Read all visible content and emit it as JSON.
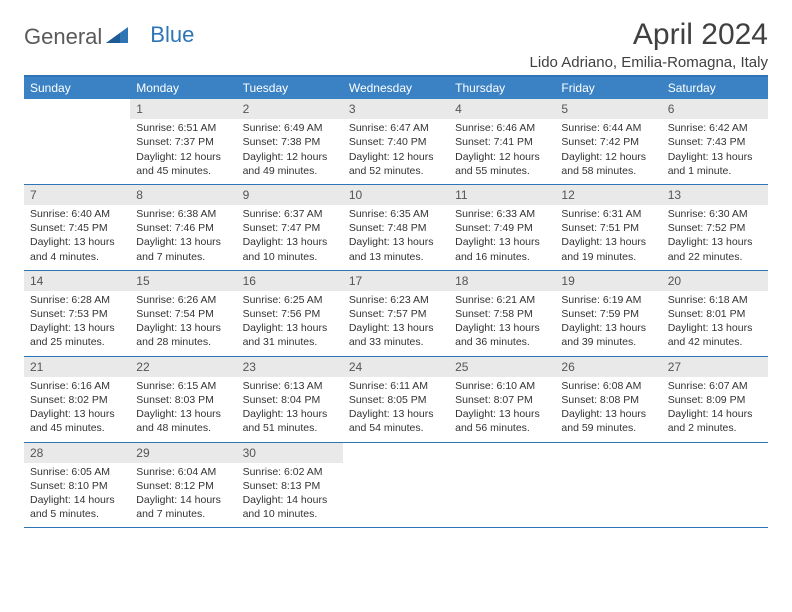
{
  "logo": {
    "text1": "General",
    "text2": "Blue"
  },
  "title": "April 2024",
  "location": "Lido Adriano, Emilia-Romagna, Italy",
  "colors": {
    "header_bar": "#3a82c4",
    "border": "#2e75b6",
    "daynum_bg": "#e9e9e9",
    "text": "#333333"
  },
  "day_headers": [
    "Sunday",
    "Monday",
    "Tuesday",
    "Wednesday",
    "Thursday",
    "Friday",
    "Saturday"
  ],
  "weeks": [
    [
      {
        "n": "",
        "sr": "",
        "ss": "",
        "dl": ""
      },
      {
        "n": "1",
        "sr": "Sunrise: 6:51 AM",
        "ss": "Sunset: 7:37 PM",
        "dl": "Daylight: 12 hours and 45 minutes."
      },
      {
        "n": "2",
        "sr": "Sunrise: 6:49 AM",
        "ss": "Sunset: 7:38 PM",
        "dl": "Daylight: 12 hours and 49 minutes."
      },
      {
        "n": "3",
        "sr": "Sunrise: 6:47 AM",
        "ss": "Sunset: 7:40 PM",
        "dl": "Daylight: 12 hours and 52 minutes."
      },
      {
        "n": "4",
        "sr": "Sunrise: 6:46 AM",
        "ss": "Sunset: 7:41 PM",
        "dl": "Daylight: 12 hours and 55 minutes."
      },
      {
        "n": "5",
        "sr": "Sunrise: 6:44 AM",
        "ss": "Sunset: 7:42 PM",
        "dl": "Daylight: 12 hours and 58 minutes."
      },
      {
        "n": "6",
        "sr": "Sunrise: 6:42 AM",
        "ss": "Sunset: 7:43 PM",
        "dl": "Daylight: 13 hours and 1 minute."
      }
    ],
    [
      {
        "n": "7",
        "sr": "Sunrise: 6:40 AM",
        "ss": "Sunset: 7:45 PM",
        "dl": "Daylight: 13 hours and 4 minutes."
      },
      {
        "n": "8",
        "sr": "Sunrise: 6:38 AM",
        "ss": "Sunset: 7:46 PM",
        "dl": "Daylight: 13 hours and 7 minutes."
      },
      {
        "n": "9",
        "sr": "Sunrise: 6:37 AM",
        "ss": "Sunset: 7:47 PM",
        "dl": "Daylight: 13 hours and 10 minutes."
      },
      {
        "n": "10",
        "sr": "Sunrise: 6:35 AM",
        "ss": "Sunset: 7:48 PM",
        "dl": "Daylight: 13 hours and 13 minutes."
      },
      {
        "n": "11",
        "sr": "Sunrise: 6:33 AM",
        "ss": "Sunset: 7:49 PM",
        "dl": "Daylight: 13 hours and 16 minutes."
      },
      {
        "n": "12",
        "sr": "Sunrise: 6:31 AM",
        "ss": "Sunset: 7:51 PM",
        "dl": "Daylight: 13 hours and 19 minutes."
      },
      {
        "n": "13",
        "sr": "Sunrise: 6:30 AM",
        "ss": "Sunset: 7:52 PM",
        "dl": "Daylight: 13 hours and 22 minutes."
      }
    ],
    [
      {
        "n": "14",
        "sr": "Sunrise: 6:28 AM",
        "ss": "Sunset: 7:53 PM",
        "dl": "Daylight: 13 hours and 25 minutes."
      },
      {
        "n": "15",
        "sr": "Sunrise: 6:26 AM",
        "ss": "Sunset: 7:54 PM",
        "dl": "Daylight: 13 hours and 28 minutes."
      },
      {
        "n": "16",
        "sr": "Sunrise: 6:25 AM",
        "ss": "Sunset: 7:56 PM",
        "dl": "Daylight: 13 hours and 31 minutes."
      },
      {
        "n": "17",
        "sr": "Sunrise: 6:23 AM",
        "ss": "Sunset: 7:57 PM",
        "dl": "Daylight: 13 hours and 33 minutes."
      },
      {
        "n": "18",
        "sr": "Sunrise: 6:21 AM",
        "ss": "Sunset: 7:58 PM",
        "dl": "Daylight: 13 hours and 36 minutes."
      },
      {
        "n": "19",
        "sr": "Sunrise: 6:19 AM",
        "ss": "Sunset: 7:59 PM",
        "dl": "Daylight: 13 hours and 39 minutes."
      },
      {
        "n": "20",
        "sr": "Sunrise: 6:18 AM",
        "ss": "Sunset: 8:01 PM",
        "dl": "Daylight: 13 hours and 42 minutes."
      }
    ],
    [
      {
        "n": "21",
        "sr": "Sunrise: 6:16 AM",
        "ss": "Sunset: 8:02 PM",
        "dl": "Daylight: 13 hours and 45 minutes."
      },
      {
        "n": "22",
        "sr": "Sunrise: 6:15 AM",
        "ss": "Sunset: 8:03 PM",
        "dl": "Daylight: 13 hours and 48 minutes."
      },
      {
        "n": "23",
        "sr": "Sunrise: 6:13 AM",
        "ss": "Sunset: 8:04 PM",
        "dl": "Daylight: 13 hours and 51 minutes."
      },
      {
        "n": "24",
        "sr": "Sunrise: 6:11 AM",
        "ss": "Sunset: 8:05 PM",
        "dl": "Daylight: 13 hours and 54 minutes."
      },
      {
        "n": "25",
        "sr": "Sunrise: 6:10 AM",
        "ss": "Sunset: 8:07 PM",
        "dl": "Daylight: 13 hours and 56 minutes."
      },
      {
        "n": "26",
        "sr": "Sunrise: 6:08 AM",
        "ss": "Sunset: 8:08 PM",
        "dl": "Daylight: 13 hours and 59 minutes."
      },
      {
        "n": "27",
        "sr": "Sunrise: 6:07 AM",
        "ss": "Sunset: 8:09 PM",
        "dl": "Daylight: 14 hours and 2 minutes."
      }
    ],
    [
      {
        "n": "28",
        "sr": "Sunrise: 6:05 AM",
        "ss": "Sunset: 8:10 PM",
        "dl": "Daylight: 14 hours and 5 minutes."
      },
      {
        "n": "29",
        "sr": "Sunrise: 6:04 AM",
        "ss": "Sunset: 8:12 PM",
        "dl": "Daylight: 14 hours and 7 minutes."
      },
      {
        "n": "30",
        "sr": "Sunrise: 6:02 AM",
        "ss": "Sunset: 8:13 PM",
        "dl": "Daylight: 14 hours and 10 minutes."
      },
      {
        "n": "",
        "sr": "",
        "ss": "",
        "dl": ""
      },
      {
        "n": "",
        "sr": "",
        "ss": "",
        "dl": ""
      },
      {
        "n": "",
        "sr": "",
        "ss": "",
        "dl": ""
      },
      {
        "n": "",
        "sr": "",
        "ss": "",
        "dl": ""
      }
    ]
  ]
}
